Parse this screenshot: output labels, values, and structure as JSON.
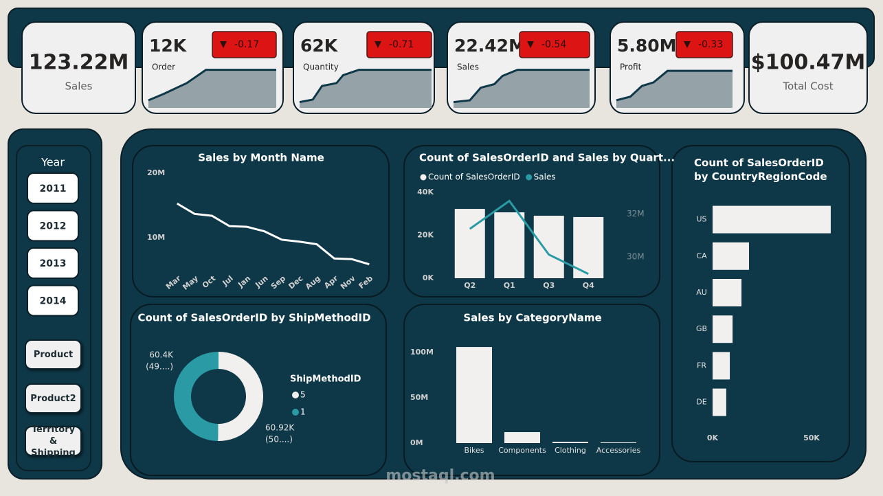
{
  "cards": [
    {
      "value": "123.22M",
      "label": "Sales"
    },
    {
      "value": "12K",
      "label": "Order",
      "change": "-0.17"
    },
    {
      "value": "62K",
      "label": "Quantity",
      "change": "-0.71"
    },
    {
      "value": "22.42M",
      "label": "Sales",
      "change": "-0.54"
    },
    {
      "value": "5.80M",
      "label": "Profit",
      "change": "-0.33"
    },
    {
      "value": "$100.47M",
      "label": "Total Cost"
    }
  ],
  "slicer": {
    "title": "Year",
    "items": [
      "2011",
      "2012",
      "2013",
      "2014"
    ]
  },
  "nav_buttons": [
    "Product",
    "Product2",
    "Territory & Shipping"
  ],
  "watermark": "mostaql.com",
  "chart_data": [
    {
      "type": "line",
      "title": "Sales by Month Name",
      "color": "#ffffff",
      "categories": [
        "Mar",
        "May",
        "Oct",
        "Jul",
        "Jan",
        "Jun",
        "Sep",
        "Dec",
        "Aug",
        "Apr",
        "Nov",
        "Feb"
      ],
      "values": [
        15300000,
        13700000,
        13400000,
        11800000,
        11700000,
        11000000,
        9700000,
        9400000,
        9000000,
        6800000,
        6700000,
        5900000
      ],
      "ylim": [
        4000000,
        21000000
      ],
      "yticks": [
        {
          "value": 10000000,
          "label": "10M"
        },
        {
          "value": 20000000,
          "label": "20M"
        }
      ]
    },
    {
      "type": "combo",
      "title": "Count of SalesOrderID and Sales by Quart...",
      "legend": true,
      "categories": [
        "Q2",
        "Q1",
        "Q3",
        "Q4"
      ],
      "series": [
        {
          "name": "Count of SalesOrderID",
          "kind": "bar",
          "color": "#f2f0ee",
          "values": [
            32300,
            30700,
            29100,
            28500
          ]
        },
        {
          "name": "Sales",
          "kind": "line",
          "axis": "y2",
          "color": "#2a9ba5",
          "values": [
            31300000,
            32600000,
            30100000,
            29200000
          ]
        }
      ],
      "ylim": [
        0,
        40000
      ],
      "yticks": [
        {
          "value": 0,
          "label": "0K"
        },
        {
          "value": 20000,
          "label": "20K"
        },
        {
          "value": 40000,
          "label": "40K"
        }
      ],
      "y2lim": [
        29000000,
        33000000
      ],
      "y2ticks": [
        {
          "value": 30000000,
          "label": "30M"
        },
        {
          "value": 32000000,
          "label": "32M"
        }
      ]
    },
    {
      "type": "donut",
      "title": "Count of SalesOrderID by ShipMethodID",
      "legend_title": "ShipMethodID",
      "categories": [
        "5",
        "1"
      ],
      "values": [
        60920,
        60400
      ],
      "value_labels": [
        "60.92K",
        "60.4K"
      ],
      "share_labels": [
        "(50....)",
        "(49....)"
      ],
      "colors": [
        "#f2f0ee",
        "#2a9ba5"
      ]
    },
    {
      "type": "bar",
      "title": "Sales by CategoryName",
      "color": "#f2f0ee",
      "categories": [
        "Bikes",
        "Components",
        "Clothing",
        "Accessories"
      ],
      "values": [
        106000000,
        12100000,
        1500000,
        800000
      ],
      "ylim": [
        0,
        110000000
      ],
      "yticks": [
        {
          "value": 0,
          "label": "0M"
        },
        {
          "value": 50000000,
          "label": "50M"
        },
        {
          "value": 100000000,
          "label": "100M"
        }
      ]
    },
    {
      "type": "hbar",
      "title": "Count of SalesOrderID by CountryRegionCode",
      "color": "#f2f0ee",
      "categories": [
        "US",
        "CA",
        "AU",
        "GB",
        "FR",
        "DE"
      ],
      "values": [
        59700,
        18400,
        14600,
        10100,
        8700,
        6900
      ],
      "xlim": [
        0,
        60000
      ],
      "xticks": [
        {
          "value": 0,
          "label": "0K"
        },
        {
          "value": 50000,
          "label": "50K"
        }
      ]
    }
  ]
}
